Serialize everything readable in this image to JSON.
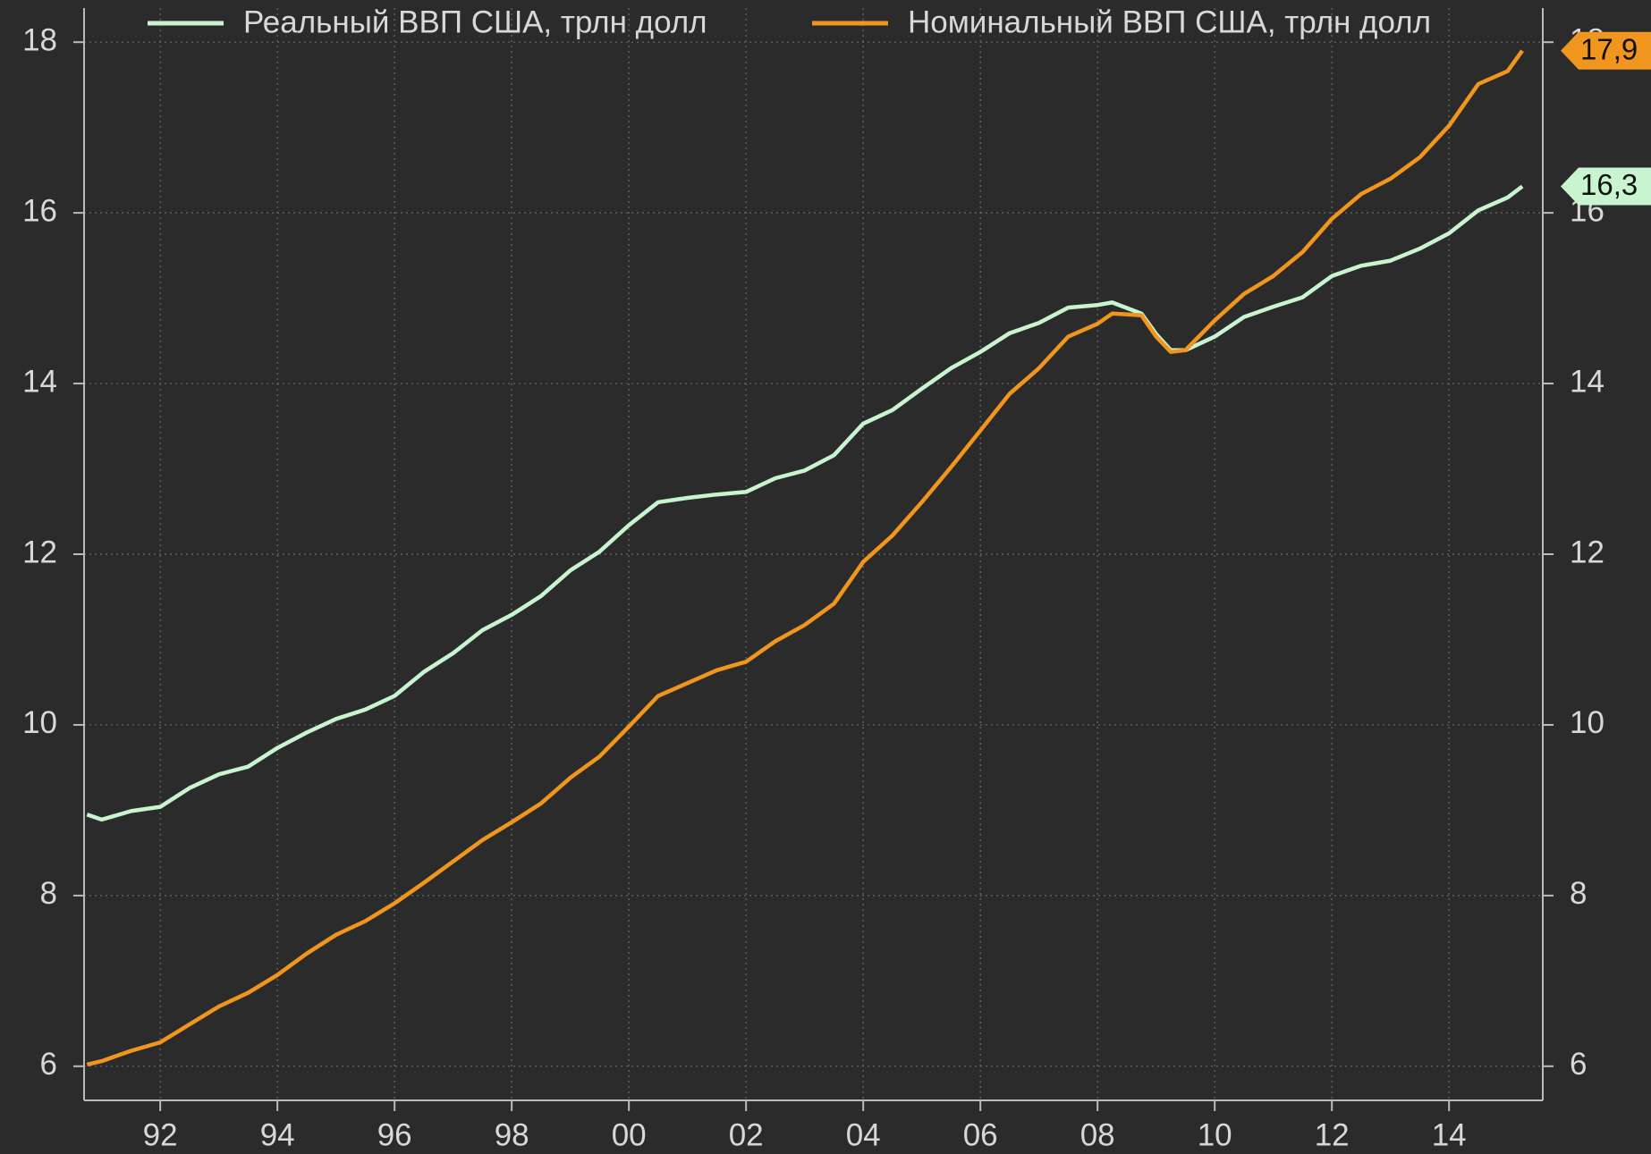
{
  "chart_data": {
    "type": "line",
    "x": [
      1990.75,
      1991.0,
      1991.5,
      1992.0,
      1992.5,
      1993.0,
      1993.5,
      1994.0,
      1994.5,
      1995.0,
      1995.5,
      1996.0,
      1996.5,
      1997.0,
      1997.5,
      1998.0,
      1998.5,
      1999.0,
      1999.5,
      2000.0,
      2000.5,
      2001.0,
      2001.5,
      2002.0,
      2002.5,
      2003.0,
      2003.5,
      2004.0,
      2004.5,
      2005.0,
      2005.5,
      2006.0,
      2006.5,
      2007.0,
      2007.5,
      2008.0,
      2008.25,
      2008.75,
      2009.0,
      2009.25,
      2009.5,
      2010.0,
      2010.5,
      2011.0,
      2011.5,
      2012.0,
      2012.5,
      2013.0,
      2013.5,
      2014.0,
      2014.5,
      2015.0,
      2015.25
    ],
    "series": [
      {
        "name": "Реальный ВВП США, трлн долл",
        "color": "#c8f5cf",
        "last_value_label": "16,3",
        "values": [
          8.95,
          8.89,
          8.99,
          9.04,
          9.26,
          9.42,
          9.51,
          9.73,
          9.91,
          10.07,
          10.18,
          10.34,
          10.62,
          10.84,
          11.11,
          11.29,
          11.51,
          11.81,
          12.03,
          12.34,
          12.61,
          12.66,
          12.7,
          12.73,
          12.89,
          12.98,
          13.16,
          13.53,
          13.69,
          13.94,
          14.18,
          14.37,
          14.59,
          14.71,
          14.89,
          14.92,
          14.95,
          14.82,
          14.58,
          14.39,
          14.39,
          14.55,
          14.78,
          14.9,
          15.01,
          15.26,
          15.38,
          15.44,
          15.58,
          15.76,
          16.03,
          16.18,
          16.31
        ]
      },
      {
        "name": "Номинальный ВВП США, трлн долл",
        "color": "#f0961e",
        "last_value_label": "17,9",
        "values": [
          6.02,
          6.06,
          6.18,
          6.28,
          6.49,
          6.7,
          6.86,
          7.07,
          7.32,
          7.54,
          7.7,
          7.91,
          8.15,
          8.4,
          8.65,
          8.86,
          9.08,
          9.38,
          9.63,
          9.98,
          10.34,
          10.49,
          10.64,
          10.74,
          10.98,
          11.17,
          11.42,
          11.91,
          12.22,
          12.61,
          13.02,
          13.45,
          13.88,
          14.18,
          14.55,
          14.7,
          14.82,
          14.8,
          14.55,
          14.37,
          14.39,
          14.74,
          15.05,
          15.26,
          15.54,
          15.93,
          16.22,
          16.4,
          16.65,
          17.02,
          17.51,
          17.66,
          17.9
        ]
      }
    ],
    "xlim": [
      1990.7,
      2015.6
    ],
    "xticks": [
      {
        "value": 1992,
        "label": "92"
      },
      {
        "value": 1994,
        "label": "94"
      },
      {
        "value": 1996,
        "label": "96"
      },
      {
        "value": 1998,
        "label": "98"
      },
      {
        "value": 2000,
        "label": "00"
      },
      {
        "value": 2002,
        "label": "02"
      },
      {
        "value": 2004,
        "label": "04"
      },
      {
        "value": 2006,
        "label": "06"
      },
      {
        "value": 2008,
        "label": "08"
      },
      {
        "value": 2010,
        "label": "10"
      },
      {
        "value": 2012,
        "label": "12"
      },
      {
        "value": 2014,
        "label": "14"
      }
    ],
    "ylim": [
      5.6,
      18.4
    ],
    "yticks": [
      6,
      8,
      10,
      12,
      14,
      16,
      18
    ],
    "y2lim": [
      5.6,
      18.4
    ],
    "y2ticks": [
      6,
      8,
      10,
      12,
      14,
      16,
      18
    ],
    "grid": true,
    "legend": "top"
  }
}
